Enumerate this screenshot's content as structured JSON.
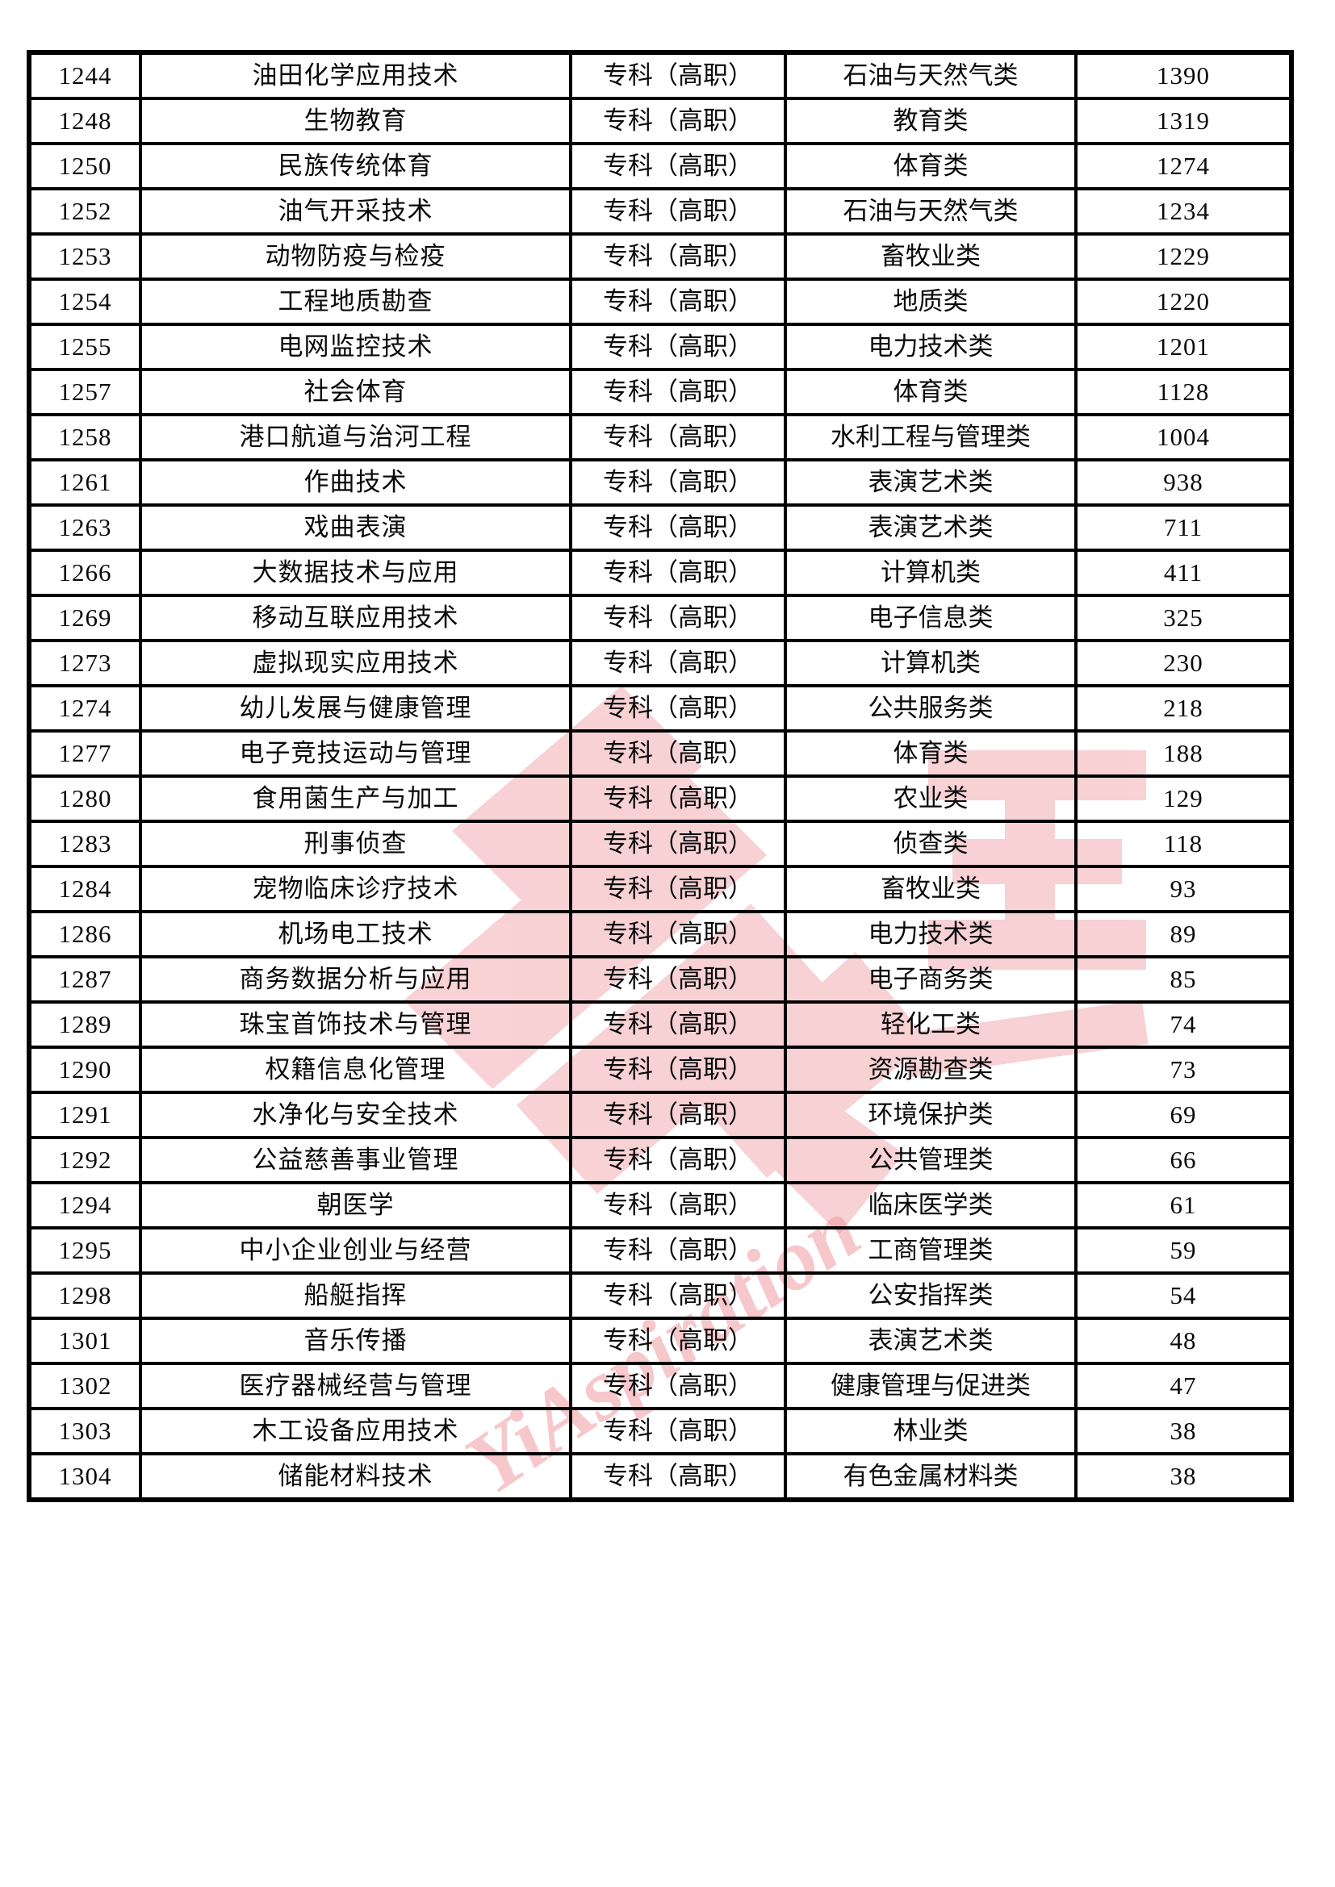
{
  "page": {
    "background_color": "#ffffff",
    "border_color": "#000000"
  },
  "watermark": {
    "text": "YiAspiration",
    "logo_color": "#e8737c",
    "text_color": "#ef9aa2"
  },
  "table": {
    "level_value": "专科（高职）",
    "rows": [
      [
        "1244",
        "油田化学应用技术",
        "专科（高职）",
        "石油与天然气类",
        "1390"
      ],
      [
        "1248",
        "生物教育",
        "专科（高职）",
        "教育类",
        "1319"
      ],
      [
        "1250",
        "民族传统体育",
        "专科（高职）",
        "体育类",
        "1274"
      ],
      [
        "1252",
        "油气开采技术",
        "专科（高职）",
        "石油与天然气类",
        "1234"
      ],
      [
        "1253",
        "动物防疫与检疫",
        "专科（高职）",
        "畜牧业类",
        "1229"
      ],
      [
        "1254",
        "工程地质勘查",
        "专科（高职）",
        "地质类",
        "1220"
      ],
      [
        "1255",
        "电网监控技术",
        "专科（高职）",
        "电力技术类",
        "1201"
      ],
      [
        "1257",
        "社会体育",
        "专科（高职）",
        "体育类",
        "1128"
      ],
      [
        "1258",
        "港口航道与治河工程",
        "专科（高职）",
        "水利工程与管理类",
        "1004"
      ],
      [
        "1261",
        "作曲技术",
        "专科（高职）",
        "表演艺术类",
        "938"
      ],
      [
        "1263",
        "戏曲表演",
        "专科（高职）",
        "表演艺术类",
        "711"
      ],
      [
        "1266",
        "大数据技术与应用",
        "专科（高职）",
        "计算机类",
        "411"
      ],
      [
        "1269",
        "移动互联应用技术",
        "专科（高职）",
        "电子信息类",
        "325"
      ],
      [
        "1273",
        "虚拟现实应用技术",
        "专科（高职）",
        "计算机类",
        "230"
      ],
      [
        "1274",
        "幼儿发展与健康管理",
        "专科（高职）",
        "公共服务类",
        "218"
      ],
      [
        "1277",
        "电子竞技运动与管理",
        "专科（高职）",
        "体育类",
        "188"
      ],
      [
        "1280",
        "食用菌生产与加工",
        "专科（高职）",
        "农业类",
        "129"
      ],
      [
        "1283",
        "刑事侦查",
        "专科（高职）",
        "侦查类",
        "118"
      ],
      [
        "1284",
        "宠物临床诊疗技术",
        "专科（高职）",
        "畜牧业类",
        "93"
      ],
      [
        "1286",
        "机场电工技术",
        "专科（高职）",
        "电力技术类",
        "89"
      ],
      [
        "1287",
        "商务数据分析与应用",
        "专科（高职）",
        "电子商务类",
        "85"
      ],
      [
        "1289",
        "珠宝首饰技术与管理",
        "专科（高职）",
        "轻化工类",
        "74"
      ],
      [
        "1290",
        "权籍信息化管理",
        "专科（高职）",
        "资源勘查类",
        "73"
      ],
      [
        "1291",
        "水净化与安全技术",
        "专科（高职）",
        "环境保护类",
        "69"
      ],
      [
        "1292",
        "公益慈善事业管理",
        "专科（高职）",
        "公共管理类",
        "66"
      ],
      [
        "1294",
        "朝医学",
        "专科（高职）",
        "临床医学类",
        "61"
      ],
      [
        "1295",
        "中小企业创业与经营",
        "专科（高职）",
        "工商管理类",
        "59"
      ],
      [
        "1298",
        "船艇指挥",
        "专科（高职）",
        "公安指挥类",
        "54"
      ],
      [
        "1301",
        "音乐传播",
        "专科（高职）",
        "表演艺术类",
        "48"
      ],
      [
        "1302",
        "医疗器械经营与管理",
        "专科（高职）",
        "健康管理与促进类",
        "47"
      ],
      [
        "1303",
        "木工设备应用技术",
        "专科（高职）",
        "林业类",
        "38"
      ],
      [
        "1304",
        "储能材料技术",
        "专科（高职）",
        "有色金属材料类",
        "38"
      ]
    ]
  }
}
